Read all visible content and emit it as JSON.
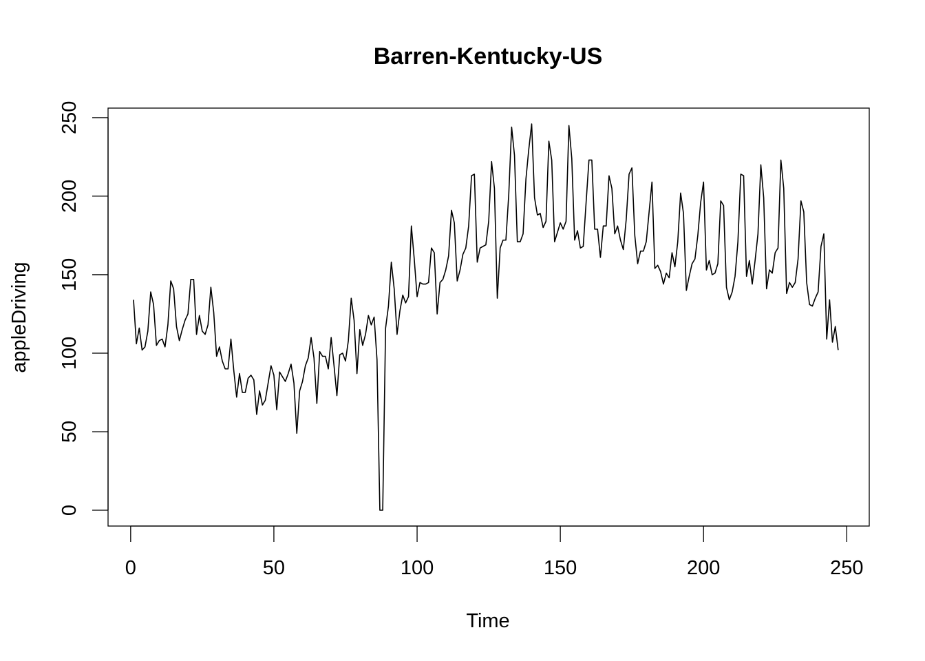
{
  "chart_data": {
    "type": "line",
    "title": "Barren-Kentucky-US",
    "xlabel": "Time",
    "ylabel": "appleDriving",
    "xlim": [
      1,
      248
    ],
    "ylim": [
      0,
      246
    ],
    "x_ticks": [
      0,
      50,
      100,
      150,
      200,
      250
    ],
    "y_ticks": [
      0,
      50,
      100,
      150,
      200,
      250
    ],
    "grid": false,
    "legend": "none",
    "line_color": "#000000",
    "x_start": 1,
    "series": [
      {
        "values": [
          134,
          106,
          116,
          102,
          104,
          114,
          139,
          131,
          105,
          108,
          109,
          104,
          118,
          146,
          141,
          117,
          108,
          115,
          121,
          125,
          147,
          147,
          112,
          124,
          114,
          112,
          118,
          142,
          126,
          98,
          104,
          95,
          90,
          90,
          109,
          89,
          72,
          87,
          75,
          75,
          84,
          86,
          83,
          61,
          76,
          67,
          70,
          81,
          92,
          86,
          64,
          88,
          85,
          82,
          87,
          93,
          81,
          49,
          76,
          82,
          92,
          97,
          110,
          97,
          68,
          101,
          98,
          98,
          90,
          110,
          92,
          73,
          99,
          100,
          95,
          108,
          135,
          121,
          87,
          115,
          105,
          112,
          124,
          118,
          123,
          96,
          0,
          0,
          116,
          130,
          158,
          141,
          112,
          127,
          137,
          132,
          136,
          181,
          160,
          136,
          145,
          144,
          144,
          145,
          167,
          164,
          125,
          145,
          147,
          153,
          162,
          191,
          183,
          146,
          153,
          163,
          167,
          181,
          213,
          214,
          158,
          167,
          168,
          169,
          184,
          222,
          205,
          135,
          167,
          172,
          172,
          201,
          244,
          226,
          171,
          171,
          176,
          211,
          230,
          246,
          199,
          188,
          189,
          180,
          184,
          235,
          223,
          171,
          177,
          183,
          179,
          184,
          245,
          224,
          172,
          178,
          167,
          168,
          196,
          223,
          223,
          179,
          179,
          161,
          181,
          181,
          213,
          205,
          176,
          181,
          172,
          166,
          185,
          214,
          218,
          175,
          157,
          165,
          165,
          171,
          190,
          209,
          154,
          156,
          152,
          144,
          151,
          148,
          164,
          155,
          171,
          202,
          189,
          140,
          149,
          157,
          160,
          175,
          196,
          209,
          153,
          159,
          150,
          151,
          157,
          197,
          194,
          142,
          134,
          139,
          149,
          171,
          214,
          213,
          149,
          159,
          144,
          159,
          176,
          220,
          199,
          141,
          153,
          151,
          164,
          167,
          223,
          205,
          138,
          145,
          142,
          145,
          160,
          197,
          190,
          145,
          131,
          130,
          135,
          139,
          168,
          176,
          109,
          134,
          107,
          117,
          102
        ]
      }
    ]
  }
}
